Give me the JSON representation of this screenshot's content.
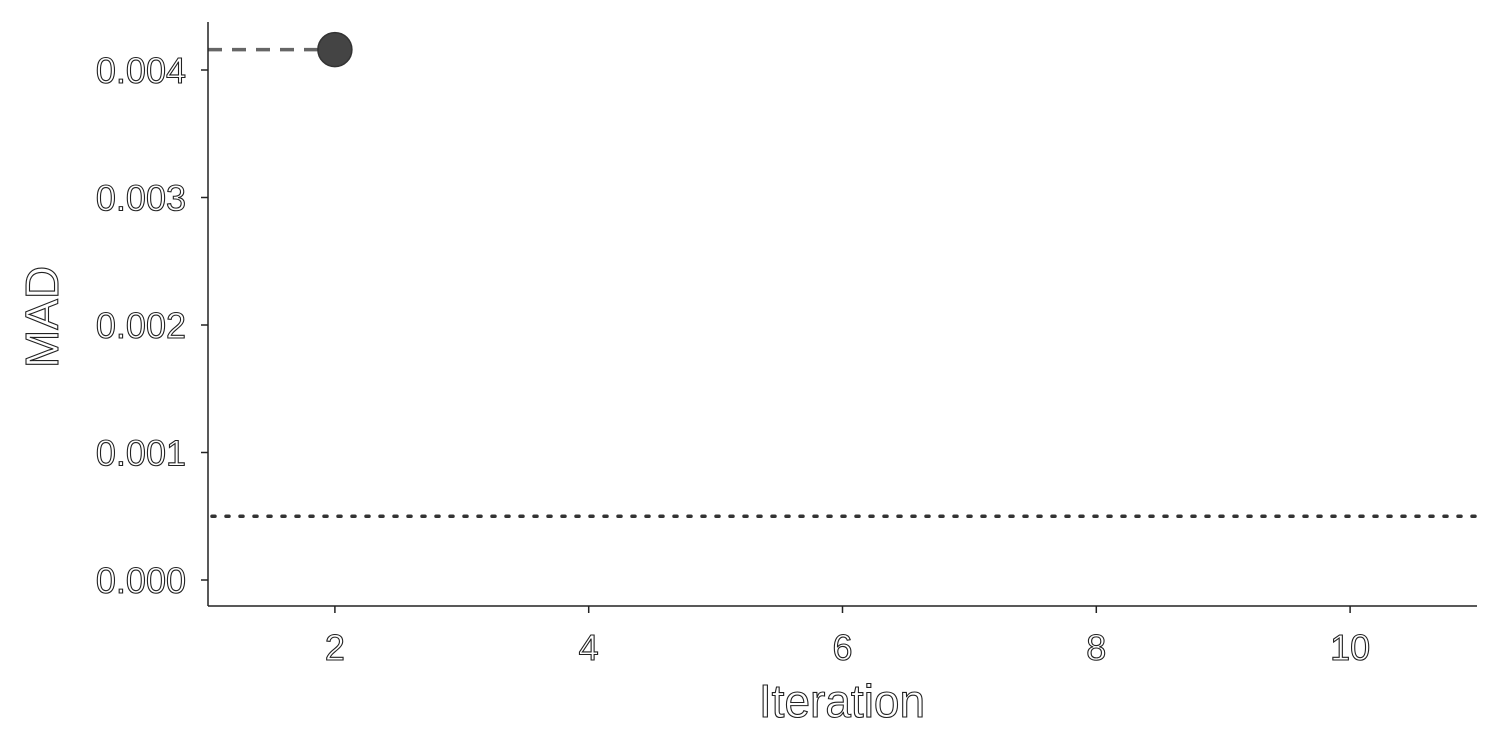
{
  "chart_data": {
    "type": "line",
    "title": "",
    "xlabel": "Iteration",
    "ylabel": "MAD",
    "xlim": [
      1,
      11
    ],
    "ylim": [
      -0.0002,
      0.0044
    ],
    "x_ticks": [
      2,
      4,
      6,
      8,
      10
    ],
    "x_tick_labels": [
      "2",
      "4",
      "6",
      "8",
      "10"
    ],
    "y_ticks": [
      0.0,
      0.001,
      0.002,
      0.003,
      0.004
    ],
    "y_tick_labels": [
      "0.000",
      "0.001",
      "0.002",
      "0.003",
      "0.004"
    ],
    "grid": false,
    "series": [
      {
        "x": [
          1,
          2
        ],
        "y": [
          0.00416,
          0.00416
        ],
        "style": "dashed",
        "color": "#666666",
        "markers": [
          {
            "x": 2,
            "y": 0.00416,
            "color": "#444444"
          }
        ]
      }
    ],
    "reference_lines": [
      {
        "y": 0.0005,
        "style": "dotted",
        "color": "#333333"
      }
    ]
  }
}
